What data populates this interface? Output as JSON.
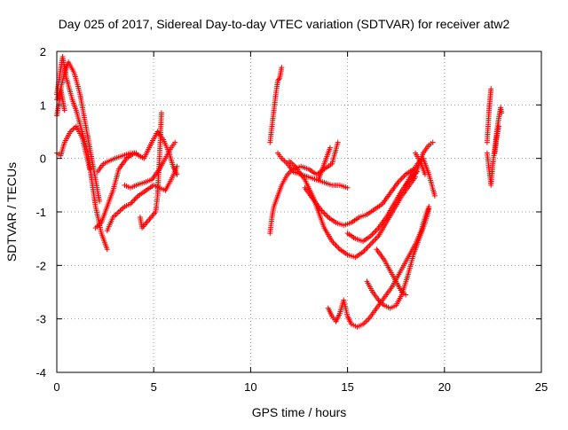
{
  "chart_data": {
    "type": "scatter",
    "title": "Day 025 of 2017, Sidereal Day-to-day VTEC variation (SDTVAR) for receiver atw2",
    "xlabel": "GPS time / hours",
    "ylabel": "SDTVAR / TECUs",
    "xlim": [
      0,
      25
    ],
    "ylim": [
      -4,
      2
    ],
    "x_ticks": [
      "0",
      "5",
      "10",
      "15",
      "20",
      "25"
    ],
    "y_ticks": [
      "2",
      "1",
      "0",
      "-1",
      "-2",
      "-3",
      "-4"
    ],
    "grid": true,
    "marker": "+",
    "marker_color": "#ff0000",
    "legend": "none",
    "tracks": [
      [
        [
          0.0,
          1.2
        ],
        [
          0.15,
          1.55
        ],
        [
          0.3,
          1.9
        ],
        [
          0.5,
          1.5
        ],
        [
          0.8,
          1.1
        ],
        [
          1.0,
          0.9
        ],
        [
          1.3,
          0.5
        ],
        [
          1.6,
          0.1
        ],
        [
          1.8,
          -0.4
        ],
        [
          2.0,
          -0.9
        ],
        [
          2.3,
          -1.4
        ],
        [
          2.6,
          -1.7
        ]
      ],
      [
        [
          0.0,
          1.1
        ],
        [
          0.2,
          1.3
        ],
        [
          0.4,
          1.6
        ],
        [
          0.6,
          1.8
        ],
        [
          0.9,
          1.6
        ],
        [
          1.2,
          1.2
        ],
        [
          1.4,
          0.8
        ],
        [
          1.6,
          0.4
        ],
        [
          1.8,
          0.0
        ],
        [
          2.0,
          -0.4
        ],
        [
          2.2,
          -0.8
        ]
      ],
      [
        [
          0.0,
          0.1
        ],
        [
          0.2,
          0.05
        ],
        [
          0.4,
          0.3
        ],
        [
          0.7,
          0.5
        ],
        [
          1.0,
          0.6
        ],
        [
          1.3,
          0.4
        ],
        [
          1.5,
          0.1
        ],
        [
          1.7,
          -0.2
        ]
      ],
      [
        [
          0.0,
          0.8
        ],
        [
          0.1,
          1.0
        ],
        [
          0.2,
          1.3
        ],
        [
          0.3,
          1.1
        ],
        [
          0.4,
          0.9
        ]
      ],
      [
        [
          2.0,
          -1.3
        ],
        [
          2.3,
          -1.2
        ],
        [
          2.6,
          -0.9
        ],
        [
          2.9,
          -0.6
        ],
        [
          3.2,
          -0.2
        ],
        [
          3.6,
          0.0
        ],
        [
          4.0,
          0.1
        ],
        [
          4.5,
          0.0
        ],
        [
          4.9,
          0.3
        ],
        [
          5.2,
          0.5
        ],
        [
          5.5,
          0.35
        ],
        [
          5.8,
          0.1
        ],
        [
          6.0,
          -0.15
        ],
        [
          6.2,
          -0.3
        ]
      ],
      [
        [
          2.6,
          -1.35
        ],
        [
          2.9,
          -1.1
        ],
        [
          3.2,
          -1.0
        ],
        [
          3.5,
          -0.9
        ],
        [
          3.8,
          -0.85
        ],
        [
          4.2,
          -0.7
        ],
        [
          4.6,
          -0.6
        ],
        [
          5.0,
          -0.5
        ],
        [
          5.3,
          -0.55
        ],
        [
          5.6,
          -0.6
        ],
        [
          5.9,
          -0.4
        ],
        [
          6.2,
          -0.15
        ]
      ],
      [
        [
          2.1,
          -0.25
        ],
        [
          2.4,
          -0.1
        ],
        [
          2.7,
          -0.05
        ],
        [
          3.0,
          0.0
        ],
        [
          3.4,
          0.05
        ],
        [
          3.8,
          0.1
        ],
        [
          4.1,
          0.1
        ]
      ],
      [
        [
          3.5,
          -0.5
        ],
        [
          3.8,
          -0.55
        ],
        [
          4.1,
          -0.5
        ],
        [
          4.5,
          -0.45
        ],
        [
          4.9,
          -0.4
        ],
        [
          5.3,
          -0.2
        ],
        [
          5.6,
          0.0
        ],
        [
          5.9,
          0.2
        ],
        [
          6.1,
          0.3
        ]
      ],
      [
        [
          4.3,
          -1.1
        ],
        [
          4.4,
          -1.3
        ],
        [
          5.1,
          -1.0
        ],
        [
          5.2,
          -0.7
        ],
        [
          5.25,
          -0.3
        ],
        [
          5.3,
          0.0
        ],
        [
          5.35,
          0.45
        ],
        [
          5.4,
          0.85
        ]
      ],
      [
        [
          11.0,
          -1.4
        ],
        [
          11.1,
          -1.1
        ],
        [
          11.2,
          -0.9
        ],
        [
          11.4,
          -0.7
        ],
        [
          11.6,
          -0.5
        ],
        [
          11.9,
          -0.3
        ],
        [
          12.2,
          -0.2
        ],
        [
          12.6,
          -0.15
        ],
        [
          13.0,
          -0.2
        ],
        [
          13.4,
          -0.3
        ],
        [
          13.8,
          -0.2
        ],
        [
          14.2,
          -0.1
        ],
        [
          14.5,
          0.3
        ]
      ],
      [
        [
          11.0,
          0.3
        ],
        [
          11.1,
          0.6
        ],
        [
          11.2,
          0.9
        ],
        [
          11.3,
          1.2
        ],
        [
          11.4,
          1.45
        ],
        [
          11.5,
          1.5
        ],
        [
          11.6,
          1.7
        ]
      ],
      [
        [
          11.4,
          0.1
        ],
        [
          11.6,
          0.0
        ],
        [
          11.9,
          -0.1
        ],
        [
          12.2,
          -0.25
        ],
        [
          12.6,
          -0.3
        ],
        [
          13.0,
          -0.35
        ],
        [
          13.4,
          -0.4
        ],
        [
          13.8,
          -0.45
        ],
        [
          14.2,
          -0.5
        ],
        [
          14.6,
          -0.5
        ],
        [
          15.0,
          -0.55
        ]
      ],
      [
        [
          12.0,
          -0.05
        ],
        [
          12.3,
          -0.15
        ],
        [
          12.8,
          -0.4
        ],
        [
          13.2,
          -0.7
        ],
        [
          13.5,
          -1.0
        ],
        [
          13.8,
          -1.3
        ],
        [
          14.2,
          -1.55
        ],
        [
          14.6,
          -1.7
        ],
        [
          15.0,
          -1.8
        ],
        [
          15.4,
          -1.85
        ],
        [
          15.8,
          -1.75
        ],
        [
          16.2,
          -1.6
        ],
        [
          16.6,
          -1.45
        ],
        [
          17.0,
          -1.2
        ],
        [
          17.4,
          -0.95
        ],
        [
          17.8,
          -0.7
        ],
        [
          18.2,
          -0.5
        ],
        [
          18.5,
          -0.35
        ]
      ],
      [
        [
          12.8,
          -0.55
        ],
        [
          13.2,
          -0.75
        ],
        [
          13.6,
          -0.95
        ],
        [
          14.0,
          -1.1
        ],
        [
          14.4,
          -1.2
        ],
        [
          14.8,
          -1.25
        ],
        [
          15.2,
          -1.2
        ],
        [
          15.6,
          -1.1
        ],
        [
          16.0,
          -1.05
        ],
        [
          16.4,
          -0.95
        ],
        [
          16.8,
          -0.85
        ],
        [
          17.2,
          -0.65
        ],
        [
          17.6,
          -0.45
        ],
        [
          18.0,
          -0.3
        ],
        [
          18.4,
          -0.2
        ]
      ],
      [
        [
          14.0,
          -2.8
        ],
        [
          14.2,
          -2.95
        ],
        [
          14.4,
          -3.05
        ],
        [
          14.6,
          -2.9
        ],
        [
          14.8,
          -2.65
        ],
        [
          15.0,
          -2.95
        ],
        [
          15.2,
          -3.1
        ],
        [
          15.5,
          -3.15
        ],
        [
          15.8,
          -3.1
        ],
        [
          16.1,
          -3.0
        ],
        [
          16.4,
          -2.85
        ],
        [
          16.7,
          -2.7
        ],
        [
          17.0,
          -2.55
        ],
        [
          17.3,
          -2.4
        ],
        [
          17.6,
          -2.2
        ],
        [
          17.9,
          -2.0
        ],
        [
          18.2,
          -1.8
        ],
        [
          18.5,
          -1.6
        ],
        [
          18.8,
          -1.35
        ],
        [
          19.0,
          -1.1
        ],
        [
          19.2,
          -0.9
        ]
      ],
      [
        [
          16.0,
          -2.3
        ],
        [
          16.3,
          -2.5
        ],
        [
          16.6,
          -2.65
        ],
        [
          16.9,
          -2.75
        ],
        [
          17.2,
          -2.8
        ],
        [
          17.5,
          -2.75
        ],
        [
          17.8,
          -2.55
        ],
        [
          18.1,
          -2.2
        ],
        [
          18.4,
          -1.8
        ],
        [
          18.7,
          -1.5
        ],
        [
          19.0,
          -1.2
        ],
        [
          19.2,
          -0.95
        ]
      ],
      [
        [
          15.0,
          -1.4
        ],
        [
          15.4,
          -1.5
        ],
        [
          15.8,
          -1.55
        ],
        [
          16.2,
          -1.45
        ],
        [
          16.6,
          -1.3
        ],
        [
          17.0,
          -1.1
        ],
        [
          17.4,
          -0.85
        ],
        [
          17.8,
          -0.6
        ],
        [
          18.2,
          -0.4
        ],
        [
          18.6,
          -0.25
        ]
      ],
      [
        [
          16.5,
          -1.7
        ],
        [
          16.9,
          -1.9
        ],
        [
          17.2,
          -2.1
        ],
        [
          17.5,
          -2.3
        ],
        [
          17.8,
          -2.5
        ],
        [
          18.0,
          -2.55
        ]
      ],
      [
        [
          18.0,
          -0.5
        ],
        [
          18.3,
          -0.3
        ],
        [
          18.6,
          -0.1
        ],
        [
          18.9,
          0.0
        ],
        [
          19.2,
          -0.3
        ],
        [
          19.5,
          -0.7
        ]
      ],
      [
        [
          18.3,
          -0.4
        ],
        [
          18.6,
          -0.2
        ],
        [
          18.9,
          0.1
        ],
        [
          19.2,
          0.25
        ],
        [
          19.4,
          0.3
        ]
      ],
      [
        [
          18.5,
          0.1
        ],
        [
          18.8,
          -0.1
        ],
        [
          19.0,
          -0.3
        ]
      ],
      [
        [
          13.5,
          -0.4
        ],
        [
          13.8,
          -0.1
        ],
        [
          14.1,
          0.2
        ]
      ],
      [
        [
          22.2,
          0.1
        ],
        [
          22.3,
          -0.2
        ],
        [
          22.4,
          -0.5
        ],
        [
          22.5,
          -0.1
        ],
        [
          22.6,
          0.2
        ],
        [
          22.7,
          0.5
        ],
        [
          22.8,
          0.75
        ],
        [
          22.9,
          0.95
        ],
        [
          22.95,
          0.85
        ]
      ],
      [
        [
          22.2,
          0.3
        ],
        [
          22.25,
          0.6
        ],
        [
          22.3,
          0.9
        ],
        [
          22.35,
          1.1
        ],
        [
          22.4,
          1.3
        ]
      ],
      [
        [
          22.6,
          0.1
        ],
        [
          22.7,
          0.4
        ],
        [
          22.8,
          0.6
        ]
      ]
    ]
  }
}
